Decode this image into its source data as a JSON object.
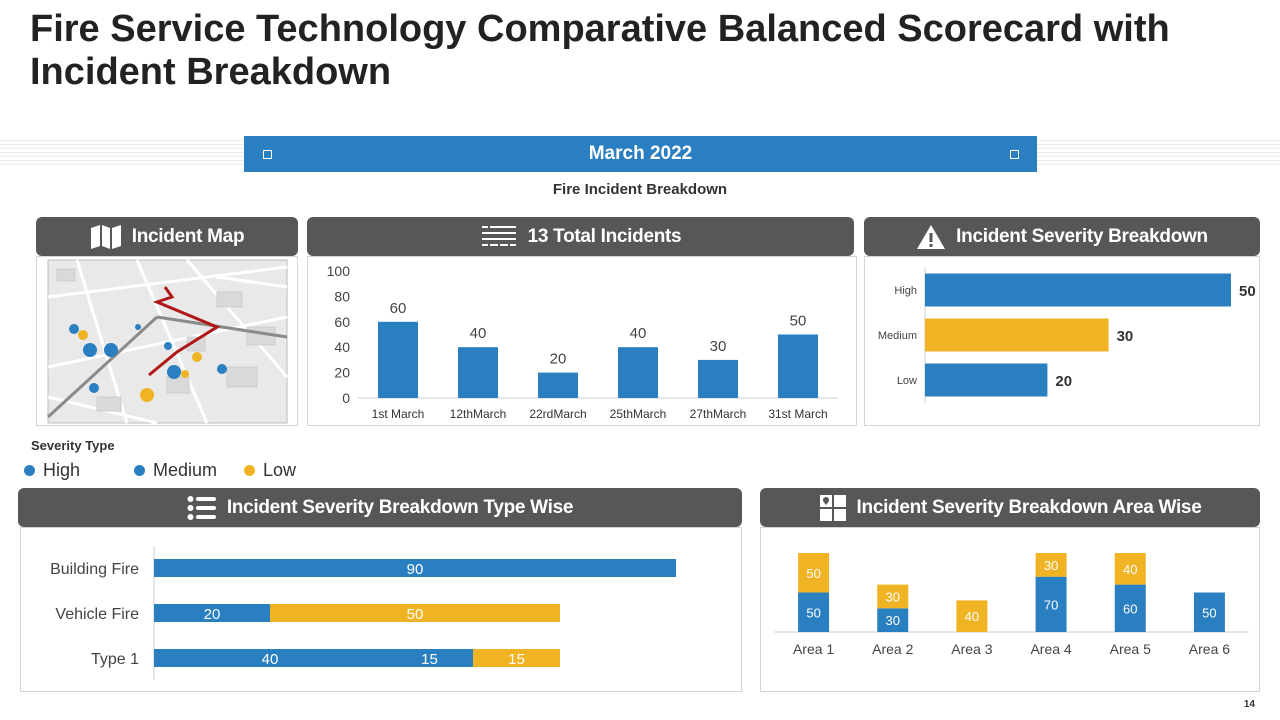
{
  "title": "Fire Service Technology Comparative Balanced Scorecard with Incident Breakdown",
  "month": "March 2022",
  "subtitle": "Fire Incident Breakdown",
  "colors": {
    "blue": "#2a7fc1",
    "yellow": "#f0b323",
    "header_gray": "#575757"
  },
  "panels": {
    "incident_map": {
      "title": "Incident Map",
      "icon": "map-icon"
    },
    "total_incidents": {
      "title": "13 Total Incidents",
      "icon": "calendar-list-icon"
    },
    "severity": {
      "title": "Incident Severity Breakdown",
      "icon": "warning-icon"
    },
    "type_wise": {
      "title": "Incident Severity Breakdown Type Wise",
      "icon": "list-icon"
    },
    "area_wise": {
      "title": "Incident Severity Breakdown Area Wise",
      "icon": "floorplan-icon"
    }
  },
  "legend": {
    "title": "Severity Type",
    "items": [
      {
        "label": "High",
        "color": "#2a7fc1"
      },
      {
        "label": "Medium",
        "color": "#2a7fc1"
      },
      {
        "label": "Low",
        "color": "#f0b323"
      }
    ]
  },
  "chart_data": [
    {
      "id": "total_incidents",
      "type": "bar",
      "categories": [
        "1st March",
        "12thMarch",
        "22rdMarch",
        "25thMarch",
        "27thMarch",
        "31st March"
      ],
      "values": [
        60,
        40,
        20,
        40,
        30,
        50
      ],
      "ylim": [
        0,
        100
      ],
      "yticks": [
        0,
        20,
        40,
        60,
        80,
        100
      ],
      "color": "#2a7fc1"
    },
    {
      "id": "severity",
      "type": "bar",
      "orientation": "horizontal",
      "categories": [
        "High",
        "Medium",
        "Low"
      ],
      "values": [
        50,
        30,
        20
      ],
      "colors": [
        "#2a7fc1",
        "#f0b323",
        "#2a7fc1"
      ],
      "xlim": [
        0,
        50
      ]
    },
    {
      "id": "type_wise",
      "type": "bar",
      "orientation": "horizontal",
      "stacked": true,
      "categories": [
        "Building Fire",
        "Vehicle Fire",
        "Type 1"
      ],
      "segments": [
        [
          {
            "value": 90,
            "color": "#2a7fc1"
          }
        ],
        [
          {
            "value": 20,
            "color": "#2a7fc1"
          },
          {
            "value": 50,
            "color": "#f0b323"
          }
        ],
        [
          {
            "value": 40,
            "color": "#2a7fc1"
          },
          {
            "value": 15,
            "color": "#2a7fc1"
          },
          {
            "value": 15,
            "color": "#f0b323"
          }
        ]
      ],
      "xlim": [
        0,
        100
      ]
    },
    {
      "id": "area_wise",
      "type": "bar",
      "stacked": true,
      "categories": [
        "Area 1",
        "Area 2",
        "Area 3",
        "Area 4",
        "Area 5",
        "Area 6"
      ],
      "series": [
        {
          "name": "blue",
          "color": "#2a7fc1",
          "values": [
            50,
            30,
            null,
            70,
            60,
            50
          ]
        },
        {
          "name": "yellow",
          "color": "#f0b323",
          "values": [
            50,
            30,
            40,
            30,
            40,
            null
          ]
        }
      ],
      "ylim": [
        0,
        100
      ]
    }
  ],
  "page_number": "14"
}
